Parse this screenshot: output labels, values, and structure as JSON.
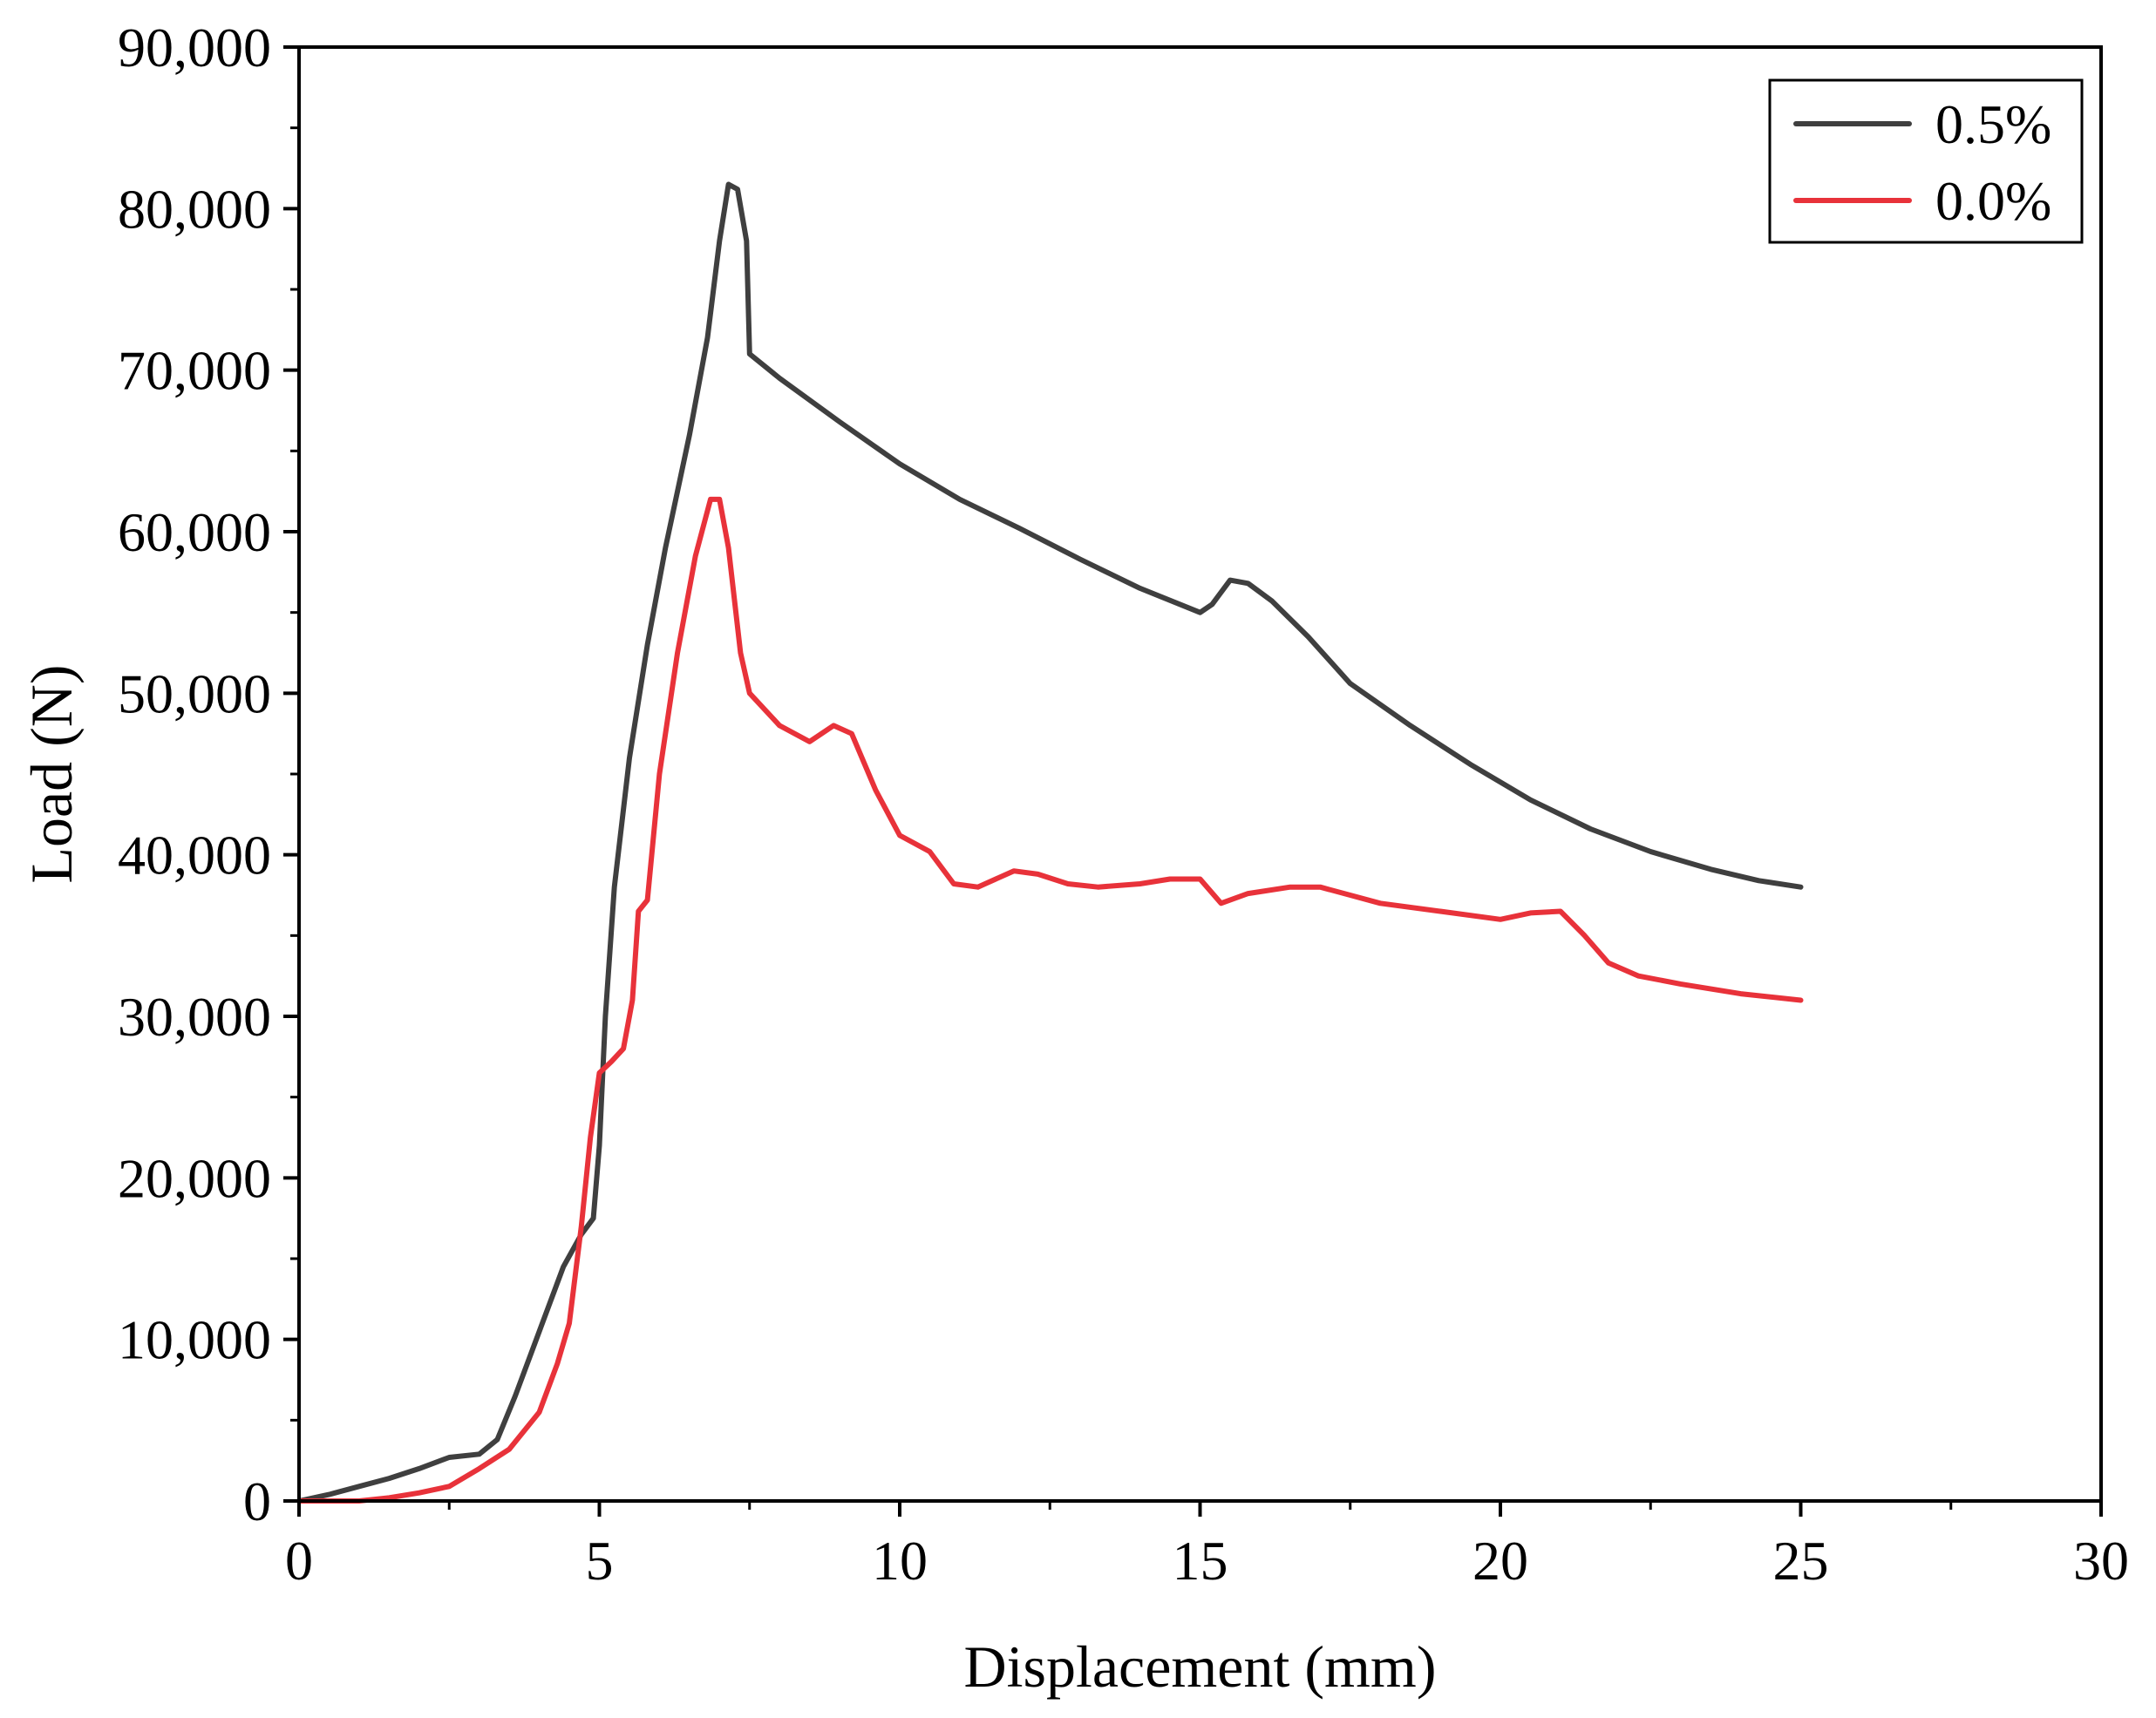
{
  "chart_data": {
    "type": "line",
    "title": "",
    "xlabel": "Displacement (mm)",
    "ylabel": "Load (N)",
    "xlim": [
      0,
      30
    ],
    "ylim": [
      0,
      90000
    ],
    "x_ticks": [
      0,
      5,
      10,
      15,
      20,
      25,
      30
    ],
    "x_tick_labels": [
      "0",
      "5",
      "10",
      "15",
      "20",
      "25",
      "30"
    ],
    "y_ticks": [
      0,
      10000,
      20000,
      30000,
      40000,
      50000,
      60000,
      70000,
      80000,
      90000
    ],
    "y_tick_labels": [
      "0",
      "10,000",
      "20,000",
      "30,000",
      "40,000",
      "50,000",
      "60,000",
      "70,000",
      "80,000",
      "90,000"
    ],
    "grid": false,
    "legend_position": "top-right",
    "series": [
      {
        "name": "0.5%",
        "color": "#3f3f3f",
        "points": [
          [
            0,
            0
          ],
          [
            0.5,
            400
          ],
          [
            1.0,
            900
          ],
          [
            1.5,
            1400
          ],
          [
            2.0,
            2000
          ],
          [
            2.5,
            2700
          ],
          [
            3.0,
            2900
          ],
          [
            3.3,
            3800
          ],
          [
            3.6,
            6500
          ],
          [
            4.0,
            10500
          ],
          [
            4.4,
            14500
          ],
          [
            4.7,
            16500
          ],
          [
            4.9,
            17500
          ],
          [
            5.0,
            22000
          ],
          [
            5.1,
            30000
          ],
          [
            5.25,
            38000
          ],
          [
            5.5,
            46000
          ],
          [
            5.8,
            53000
          ],
          [
            6.1,
            59000
          ],
          [
            6.5,
            66000
          ],
          [
            6.8,
            72000
          ],
          [
            7.0,
            78000
          ],
          [
            7.15,
            81500
          ],
          [
            7.3,
            81200
          ],
          [
            7.45,
            78000
          ],
          [
            7.5,
            71000
          ],
          [
            8.0,
            69500
          ],
          [
            9.0,
            66800
          ],
          [
            10.0,
            64200
          ],
          [
            11.0,
            62000
          ],
          [
            12.0,
            60200
          ],
          [
            13.0,
            58300
          ],
          [
            14.0,
            56500
          ],
          [
            15.0,
            55000
          ],
          [
            15.2,
            55500
          ],
          [
            15.5,
            57000
          ],
          [
            15.8,
            56800
          ],
          [
            16.2,
            55700
          ],
          [
            16.8,
            53500
          ],
          [
            17.5,
            50600
          ],
          [
            18.5,
            48000
          ],
          [
            19.5,
            45600
          ],
          [
            20.5,
            43400
          ],
          [
            21.5,
            41600
          ],
          [
            22.5,
            40200
          ],
          [
            23.5,
            39100
          ],
          [
            24.3,
            38400
          ],
          [
            25.0,
            38000
          ]
        ]
      },
      {
        "name": "0.0%",
        "color": "#e8323a",
        "points": [
          [
            0,
            0
          ],
          [
            1.0,
            0
          ],
          [
            1.5,
            200
          ],
          [
            2.0,
            500
          ],
          [
            2.5,
            900
          ],
          [
            3.0,
            2000
          ],
          [
            3.5,
            3200
          ],
          [
            4.0,
            5500
          ],
          [
            4.3,
            8500
          ],
          [
            4.5,
            11000
          ],
          [
            4.7,
            17000
          ],
          [
            4.85,
            22500
          ],
          [
            5.0,
            26500
          ],
          [
            5.2,
            27200
          ],
          [
            5.4,
            28000
          ],
          [
            5.55,
            31000
          ],
          [
            5.65,
            36500
          ],
          [
            5.8,
            37200
          ],
          [
            6.0,
            45000
          ],
          [
            6.3,
            52500
          ],
          [
            6.6,
            58500
          ],
          [
            6.85,
            62000
          ],
          [
            7.0,
            62000
          ],
          [
            7.15,
            59000
          ],
          [
            7.35,
            52500
          ],
          [
            7.5,
            50000
          ],
          [
            8.0,
            48000
          ],
          [
            8.5,
            47000
          ],
          [
            8.9,
            48000
          ],
          [
            9.2,
            47500
          ],
          [
            9.6,
            44000
          ],
          [
            10.0,
            41200
          ],
          [
            10.5,
            40200
          ],
          [
            10.9,
            38200
          ],
          [
            11.3,
            38000
          ],
          [
            11.9,
            39000
          ],
          [
            12.3,
            38800
          ],
          [
            12.8,
            38200
          ],
          [
            13.3,
            38000
          ],
          [
            14.0,
            38200
          ],
          [
            14.5,
            38500
          ],
          [
            15.0,
            38500
          ],
          [
            15.35,
            37000
          ],
          [
            15.8,
            37600
          ],
          [
            16.5,
            38000
          ],
          [
            17.0,
            38000
          ],
          [
            17.5,
            37500
          ],
          [
            18.0,
            37000
          ],
          [
            19.0,
            36500
          ],
          [
            20.0,
            36000
          ],
          [
            20.5,
            36400
          ],
          [
            21.0,
            36500
          ],
          [
            21.4,
            35000
          ],
          [
            21.8,
            33300
          ],
          [
            22.3,
            32500
          ],
          [
            23.0,
            32000
          ],
          [
            24.0,
            31400
          ],
          [
            25.0,
            31000
          ]
        ]
      }
    ]
  }
}
